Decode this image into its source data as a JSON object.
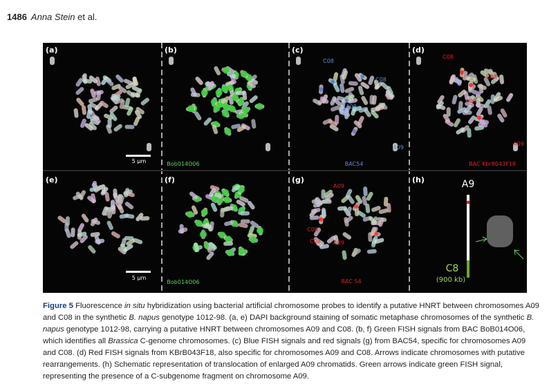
{
  "header": {
    "page_number": "1486",
    "author": "Anna Stein",
    "suffix": "et al."
  },
  "figure": {
    "panels": [
      {
        "label": "(a)",
        "texts": [
          "5 µm"
        ]
      },
      {
        "label": "(b)",
        "texts": [
          "Bob014O06"
        ]
      },
      {
        "label": "(c)",
        "texts": [
          "C08",
          "C08",
          "A09",
          "A09",
          "BAC54"
        ]
      },
      {
        "label": "(d)",
        "texts": [
          "C08",
          "C08",
          "A09",
          "A09",
          "BAC Kbr8043F18"
        ]
      },
      {
        "label": "(e)",
        "texts": [
          "5 µm"
        ]
      },
      {
        "label": "(f)",
        "texts": [
          "Bob014O06"
        ]
      },
      {
        "label": "(g)",
        "texts": [
          "A09",
          "C08",
          "C08",
          "A09",
          "BAC 54"
        ]
      },
      {
        "label": "(h)",
        "texts": [
          "A9",
          "C8",
          "(900 kb)"
        ]
      }
    ]
  },
  "caption": {
    "label": "Figure 5",
    "segments": [
      {
        "text": " Fluorescence ",
        "italic": false
      },
      {
        "text": "in situ",
        "italic": true
      },
      {
        "text": " hybridization using bacterial artificial chromosome probes to identify a putative HNRT between chromosomes A09 and C08 in the synthetic ",
        "italic": false
      },
      {
        "text": "B. napus",
        "italic": true
      },
      {
        "text": " genotype 1012-98. (a, e) DAPI background staining of somatic metaphase chromosomes of the synthetic ",
        "italic": false
      },
      {
        "text": "B. napus",
        "italic": true
      },
      {
        "text": " genotype 1012-98, carrying a putative HNRT between chromosomes A09 and C08. (b, f) Green FISH signals from BAC BoB014O06, which identifies all ",
        "italic": false
      },
      {
        "text": "Brassica",
        "italic": true
      },
      {
        "text": " C-genome chromosomes. (c) Blue FISH signals and red signals (g) from BAC54, specific for chromosomes A09 and C08. (d) Red FISH signals from KBrB043F18, also specific for chromosomes A09 and C08. Arrows indicate chromosomes with putative rearrangements. (h) Schematic representation of translocation of enlarged A09 chromatids. Green arrows indicate green FISH signal, representing the presence of a C-subgenome fragment on chromosome A09.",
        "italic": false
      }
    ]
  }
}
